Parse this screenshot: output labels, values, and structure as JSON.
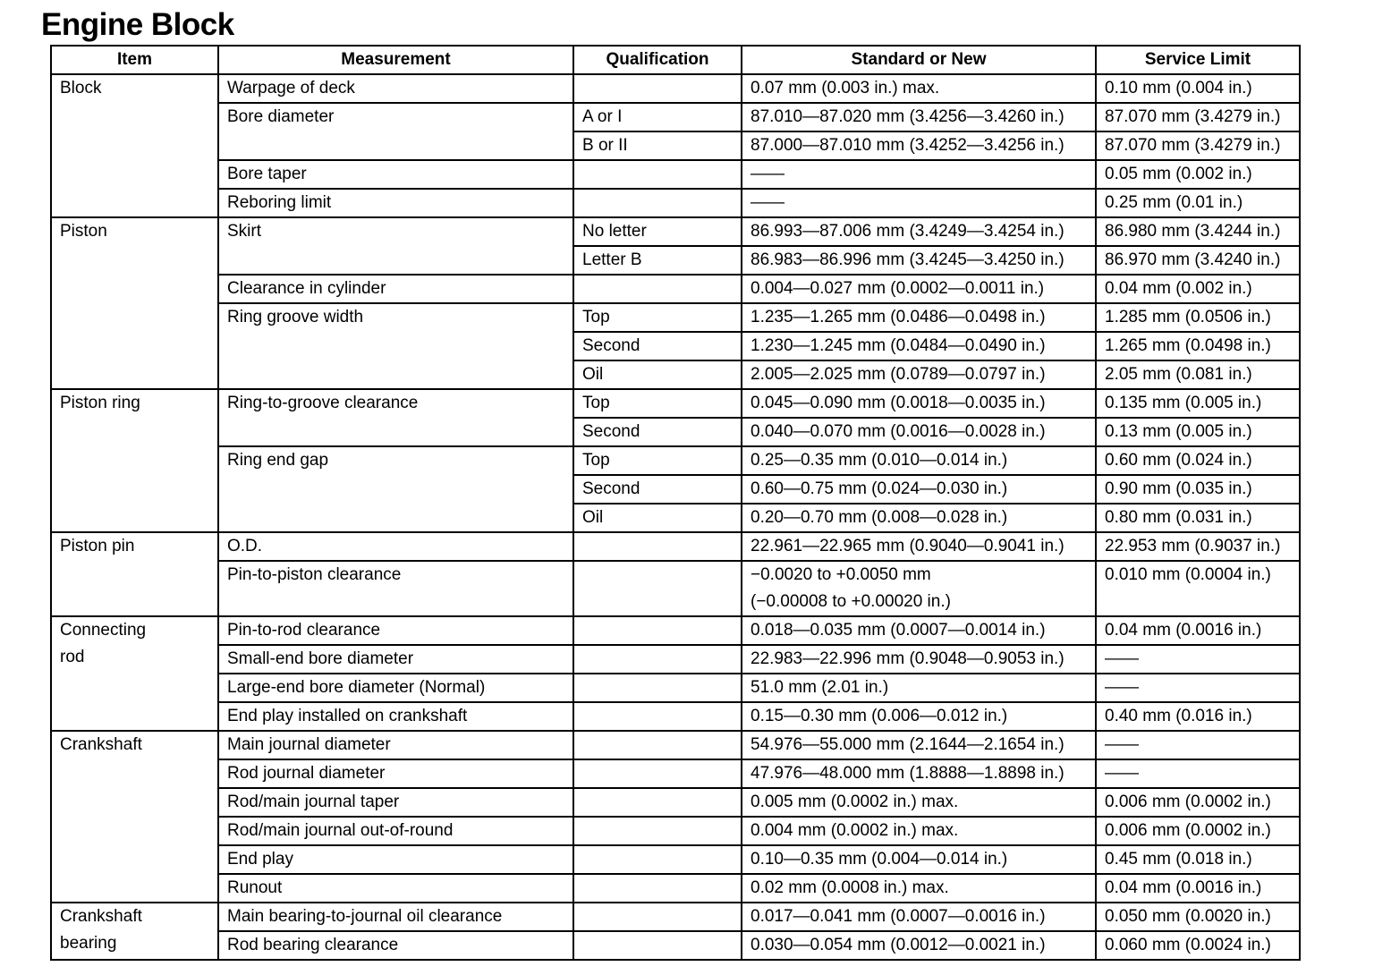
{
  "header": {
    "title": "Engine Block"
  },
  "table": {
    "columns": [
      "Item",
      "Measurement",
      "Qualification",
      "Standard or New",
      "Service Limit"
    ],
    "groups": [
      {
        "item": "Block",
        "measurements": [
          {
            "name": "Warpage of deck",
            "rows": [
              {
                "standard": "0.07 mm (0.003 in.) max.",
                "limit": "0.10 mm (0.004 in.)"
              }
            ]
          },
          {
            "name": "Bore diameter",
            "rows": [
              {
                "qualification": "A or I",
                "standard": "87.010—87.020 mm (3.4256—3.4260 in.)",
                "limit": "87.070 mm (3.4279 in.)"
              },
              {
                "qualification": "B or II",
                "standard": "87.000—87.010 mm (3.4252—3.4256 in.)",
                "limit": "87.070 mm (3.4279 in.)"
              }
            ]
          },
          {
            "name": "Bore taper",
            "rows": [
              {
                "standard": "——",
                "limit": "0.05 mm (0.002 in.)"
              }
            ]
          },
          {
            "name": "Reboring limit",
            "rows": [
              {
                "standard": "——",
                "limit": "0.25 mm (0.01 in.)"
              }
            ]
          }
        ]
      },
      {
        "item": "Piston",
        "measurements": [
          {
            "name": "Skirt",
            "rows": [
              {
                "qualification": "No letter",
                "standard": "86.993—87.006 mm (3.4249—3.4254 in.)",
                "limit": "86.980 mm (3.4244 in.)"
              },
              {
                "qualification": "Letter B",
                "standard": "86.983—86.996 mm (3.4245—3.4250 in.)",
                "limit": "86.970 mm (3.4240 in.)"
              }
            ]
          },
          {
            "name": "Clearance in cylinder",
            "rows": [
              {
                "standard": "0.004—0.027 mm (0.0002—0.0011 in.)",
                "limit": "0.04 mm (0.002 in.)"
              }
            ]
          },
          {
            "name": "Ring groove width",
            "rows": [
              {
                "qualification": "Top",
                "standard": "1.235—1.265 mm (0.0486—0.0498 in.)",
                "limit": "1.285 mm (0.0506 in.)"
              },
              {
                "qualification": "Second",
                "standard": "1.230—1.245 mm (0.0484—0.0490 in.)",
                "limit": "1.265 mm (0.0498 in.)"
              },
              {
                "qualification": "Oil",
                "standard": "2.005—2.025 mm (0.0789—0.0797 in.)",
                "limit": "2.05 mm (0.081 in.)"
              }
            ]
          }
        ]
      },
      {
        "item": "Piston ring",
        "measurements": [
          {
            "name": "Ring-to-groove clearance",
            "rows": [
              {
                "qualification": "Top",
                "standard": "0.045—0.090 mm (0.0018—0.0035 in.)",
                "limit": "0.135 mm (0.005 in.)"
              },
              {
                "qualification": "Second",
                "standard": "0.040—0.070 mm (0.0016—0.0028 in.)",
                "limit": "0.13 mm (0.005 in.)"
              }
            ]
          },
          {
            "name": "Ring end gap",
            "rows": [
              {
                "qualification": "Top",
                "standard": "0.25—0.35 mm (0.010—0.014 in.)",
                "limit": "0.60 mm (0.024 in.)"
              },
              {
                "qualification": "Second",
                "standard": "0.60—0.75 mm (0.024—0.030 in.)",
                "limit": "0.90 mm (0.035 in.)"
              },
              {
                "qualification": "Oil",
                "standard": "0.20—0.70 mm (0.008—0.028 in.)",
                "limit": "0.80 mm (0.031 in.)"
              }
            ]
          }
        ]
      },
      {
        "item": "Piston pin",
        "measurements": [
          {
            "name": "O.D.",
            "rows": [
              {
                "standard": "22.961—22.965 mm (0.9040—0.9041 in.)",
                "limit": "22.953 mm (0.9037 in.)"
              }
            ]
          },
          {
            "name": "Pin-to-piston clearance",
            "rows": [
              {
                "standard": [
                  "−0.0020 to +0.0050 mm",
                  "(−0.00008 to +0.00020 in.)"
                ],
                "limit": "0.010 mm (0.0004 in.)"
              }
            ]
          }
        ]
      },
      {
        "item": "Connecting rod",
        "measurements": [
          {
            "name": "Pin-to-rod clearance",
            "rows": [
              {
                "standard": "0.018—0.035 mm (0.0007—0.0014 in.)",
                "limit": "0.04 mm (0.0016 in.)"
              }
            ]
          },
          {
            "name": "Small-end bore diameter",
            "rows": [
              {
                "standard": "22.983—22.996 mm (0.9048—0.9053 in.)",
                "limit": "——"
              }
            ]
          },
          {
            "name": "Large-end bore diameter (Normal)",
            "rows": [
              {
                "standard": "51.0 mm (2.01 in.)",
                "limit": "——"
              }
            ]
          },
          {
            "name": "End play installed on crankshaft",
            "rows": [
              {
                "standard": "0.15—0.30 mm (0.006—0.012 in.)",
                "limit": "0.40 mm (0.016 in.)"
              }
            ]
          }
        ]
      },
      {
        "item": "Crankshaft",
        "measurements": [
          {
            "name": "Main journal diameter",
            "rows": [
              {
                "standard": "54.976—55.000 mm (2.1644—2.1654 in.)",
                "limit": "——"
              }
            ]
          },
          {
            "name": "Rod journal diameter",
            "rows": [
              {
                "standard": "47.976—48.000 mm (1.8888—1.8898 in.)",
                "limit": "——"
              }
            ]
          },
          {
            "name": "Rod/main journal taper",
            "rows": [
              {
                "standard": "0.005 mm (0.0002 in.) max.",
                "limit": "0.006 mm (0.0002 in.)"
              }
            ]
          },
          {
            "name": "Rod/main journal out-of-round",
            "rows": [
              {
                "standard": "0.004 mm (0.0002 in.) max.",
                "limit": "0.006 mm (0.0002 in.)"
              }
            ]
          },
          {
            "name": "End play",
            "rows": [
              {
                "standard": "0.10—0.35 mm (0.004—0.014 in.)",
                "limit": "0.45 mm (0.018 in.)"
              }
            ]
          },
          {
            "name": "Runout",
            "rows": [
              {
                "standard": "0.02 mm (0.0008 in.) max.",
                "limit": "0.04 mm (0.0016 in.)"
              }
            ]
          }
        ]
      },
      {
        "item": "Crankshaft bearing",
        "measurements": [
          {
            "name": "Main bearing-to-journal oil clearance",
            "rows": [
              {
                "standard": "0.017—0.041 mm (0.0007—0.0016 in.)",
                "limit": "0.050 mm (0.0020 in.)"
              }
            ]
          },
          {
            "name": "Rod bearing clearance",
            "rows": [
              {
                "standard": "0.030—0.054 mm (0.0012—0.0021 in.)",
                "limit": "0.060 mm (0.0024 in.)"
              }
            ]
          }
        ]
      }
    ]
  }
}
